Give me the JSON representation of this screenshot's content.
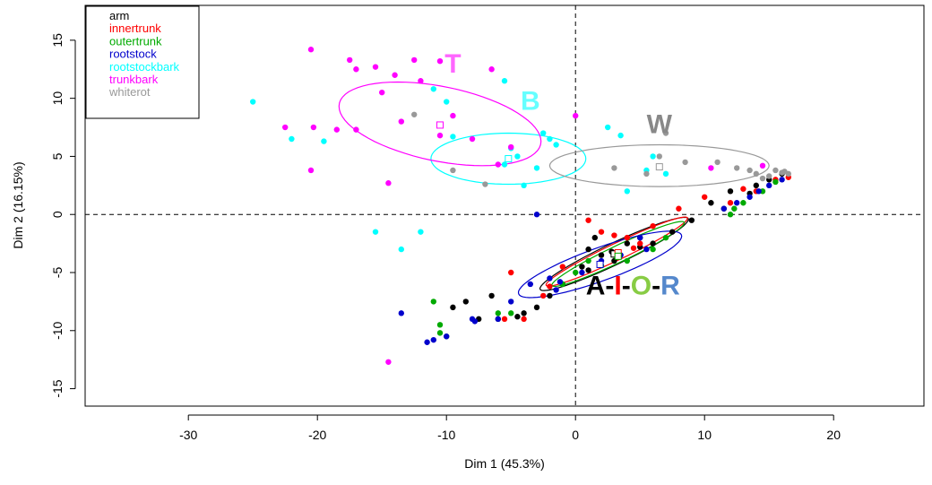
{
  "chart_data": {
    "type": "scatter",
    "xlabel": "Dim 1 (45.3%)",
    "ylabel": "Dim 2 (16.15%)",
    "xlim": [
      -38,
      27
    ],
    "ylim": [
      -16.5,
      18
    ],
    "xticks": [
      "-30",
      "-20",
      "-10",
      "0",
      "10",
      "20"
    ],
    "xtick_values": [
      -30,
      -20,
      -10,
      0,
      10,
      20
    ],
    "yticks": [
      "-15",
      "-10",
      "-5",
      "0",
      "5",
      "10",
      "15"
    ],
    "ytick_values": [
      -15,
      -10,
      -5,
      0,
      5,
      10,
      15
    ],
    "reference_lines": {
      "x": 0,
      "y": 0,
      "style": "dashed"
    },
    "legend_position": "top-left",
    "series": [
      {
        "name": "arm",
        "color": "#000000",
        "points": [
          [
            -8.5,
            -7.5
          ],
          [
            -7.5,
            -9
          ],
          [
            -6.5,
            -7
          ],
          [
            -6,
            -9
          ],
          [
            -4,
            -8.5
          ],
          [
            -3,
            -8
          ],
          [
            -2,
            -7
          ],
          [
            -1,
            -6
          ],
          [
            0.5,
            -4.5
          ],
          [
            1,
            -3
          ],
          [
            1.5,
            -2
          ],
          [
            2,
            -3.5
          ],
          [
            3,
            -4
          ],
          [
            4,
            -2.5
          ],
          [
            5,
            -2
          ],
          [
            6,
            -2.5
          ],
          [
            7.5,
            -1.5
          ],
          [
            9,
            -0.5
          ],
          [
            10.5,
            1
          ],
          [
            12,
            2
          ],
          [
            14,
            2.5
          ],
          [
            15,
            3
          ],
          [
            16,
            3.5
          ],
          [
            -9.5,
            -8
          ],
          [
            -4.5,
            -8.8
          ],
          [
            1,
            -4.8
          ],
          [
            2.8,
            -3.2
          ],
          [
            5,
            -2.8
          ],
          [
            11.5,
            0.5
          ],
          [
            13.5,
            1.8
          ]
        ],
        "ellipse": {
          "cx": 3.0,
          "cy": -3.4,
          "rx": 6.5,
          "ry": 0.9,
          "angle": 28
        }
      },
      {
        "name": "innertrunk",
        "color": "#ff0000",
        "points": [
          [
            -5,
            -5
          ],
          [
            -5.5,
            -9
          ],
          [
            -4,
            -9
          ],
          [
            -2.5,
            -7
          ],
          [
            -1,
            -4.5
          ],
          [
            1,
            -0.5
          ],
          [
            2,
            -1.5
          ],
          [
            3,
            -1.8
          ],
          [
            4,
            -2
          ],
          [
            5,
            -2.5
          ],
          [
            6,
            -1
          ],
          [
            8,
            0.5
          ],
          [
            10,
            1.5
          ],
          [
            12,
            1
          ],
          [
            14,
            2
          ],
          [
            15.5,
            3
          ],
          [
            16.5,
            3.2
          ],
          [
            -2,
            -6.2
          ],
          [
            4.5,
            -2.9
          ],
          [
            13,
            2.2
          ]
        ],
        "ellipse": {
          "cx": 3.2,
          "cy": -3.2,
          "rx": 6.2,
          "ry": 0.7,
          "angle": 28
        }
      },
      {
        "name": "outertrunk",
        "color": "#00aa00",
        "points": [
          [
            -11,
            -7.5
          ],
          [
            -10.5,
            -9.5
          ],
          [
            -10,
            -10.5
          ],
          [
            -6,
            -8.5
          ],
          [
            -5,
            -8.5
          ],
          [
            -1,
            -6
          ],
          [
            0,
            -5
          ],
          [
            1,
            -4
          ],
          [
            3,
            -3.5
          ],
          [
            4,
            -4
          ],
          [
            6,
            -3
          ],
          [
            7,
            -2
          ],
          [
            12,
            0
          ],
          [
            13,
            1
          ],
          [
            14.5,
            2
          ],
          [
            15.5,
            2.8
          ],
          [
            -10.5,
            -10.2
          ],
          [
            2,
            -4.4
          ],
          [
            12.3,
            0.5
          ]
        ],
        "ellipse": {
          "cx": 3.3,
          "cy": -3.4,
          "rx": 5.8,
          "ry": 0.7,
          "angle": 28
        }
      },
      {
        "name": "rootstock",
        "color": "#0000cc",
        "points": [
          [
            -13.5,
            -8.5
          ],
          [
            -11.5,
            -11
          ],
          [
            -10,
            -10.5
          ],
          [
            -8,
            -9
          ],
          [
            -6,
            -9
          ],
          [
            -5,
            -7.5
          ],
          [
            -3.5,
            -6
          ],
          [
            -3,
            0
          ],
          [
            -2,
            -5.5
          ],
          [
            -1.5,
            -6.5
          ],
          [
            0.5,
            -5
          ],
          [
            2,
            -4
          ],
          [
            3.5,
            -3.5
          ],
          [
            5,
            -2
          ],
          [
            5.5,
            -3
          ],
          [
            11.5,
            0.5
          ],
          [
            12.5,
            1
          ],
          [
            13.5,
            1.5
          ],
          [
            15,
            2.5
          ],
          [
            16,
            3
          ],
          [
            -11,
            -10.8
          ],
          [
            -7.8,
            -9.2
          ],
          [
            -1.2,
            -5.8
          ],
          [
            14.2,
            2
          ]
        ],
        "ellipse": {
          "cx": 1.9,
          "cy": -4.3,
          "rx": 6.8,
          "ry": 1.4,
          "angle": 22
        }
      },
      {
        "name": "rootstockbark",
        "color": "#00ffff",
        "points": [
          [
            -25,
            9.7
          ],
          [
            -22,
            6.5
          ],
          [
            -19.5,
            6.3
          ],
          [
            -15.5,
            -1.5
          ],
          [
            -13.5,
            -3
          ],
          [
            -12,
            -1.5
          ],
          [
            -11,
            10.8
          ],
          [
            -10,
            9.7
          ],
          [
            -9.5,
            6.7
          ],
          [
            -5.5,
            11.5
          ],
          [
            -5,
            5.7
          ],
          [
            -4,
            2.5
          ],
          [
            -3,
            4
          ],
          [
            -2,
            6.5
          ],
          [
            -1.5,
            6
          ],
          [
            -2.5,
            7
          ],
          [
            2.5,
            7.5
          ],
          [
            3.5,
            6.8
          ],
          [
            4,
            2
          ],
          [
            5.5,
            3.8
          ],
          [
            6,
            5
          ],
          [
            7,
            3.5
          ],
          [
            -5.5,
            4.3
          ],
          [
            -4.5,
            5
          ]
        ],
        "ellipse": {
          "cx": -5.2,
          "cy": 4.8,
          "rx": 6.0,
          "ry": 2.2,
          "angle": 0
        }
      },
      {
        "name": "trunkbark",
        "color": "#ff00ff",
        "points": [
          [
            -22.5,
            7.5
          ],
          [
            -20.5,
            14.2
          ],
          [
            -20.3,
            7.5
          ],
          [
            -20.5,
            3.8
          ],
          [
            -18.5,
            7.3
          ],
          [
            -17.5,
            13.3
          ],
          [
            -17,
            7.3
          ],
          [
            -17,
            12.5
          ],
          [
            -15.5,
            12.7
          ],
          [
            -15,
            10.5
          ],
          [
            -14.5,
            2.7
          ],
          [
            -14,
            12
          ],
          [
            -12.5,
            13.3
          ],
          [
            -12,
            11.5
          ],
          [
            -10.5,
            13.2
          ],
          [
            -10.5,
            6.8
          ],
          [
            -9.5,
            8.5
          ],
          [
            -8,
            6.5
          ],
          [
            -6.5,
            12.5
          ],
          [
            -6,
            4.3
          ],
          [
            -5,
            5.8
          ],
          [
            0,
            8.5
          ],
          [
            -14.5,
            -12.7
          ],
          [
            10.5,
            4
          ],
          [
            14.5,
            4.2
          ],
          [
            -13.5,
            8
          ]
        ],
        "ellipse": {
          "cx": -10.5,
          "cy": 7.8,
          "rx": 8.0,
          "ry": 3.2,
          "angle": -13
        }
      },
      {
        "name": "whiterot",
        "color": "#999999",
        "points": [
          [
            -12.5,
            8.6
          ],
          [
            -9.5,
            3.8
          ],
          [
            -7,
            2.6
          ],
          [
            3,
            4
          ],
          [
            5.5,
            3.5
          ],
          [
            6.5,
            5
          ],
          [
            8.5,
            4.5
          ],
          [
            11,
            4.5
          ],
          [
            12.5,
            4
          ],
          [
            13.5,
            3.8
          ],
          [
            14,
            3.5
          ],
          [
            15,
            3.3
          ],
          [
            15.5,
            3.8
          ],
          [
            16,
            3.6
          ],
          [
            16.5,
            3.5
          ],
          [
            7,
            7
          ],
          [
            14.5,
            3.1
          ],
          [
            16.2,
            3.7
          ]
        ],
        "ellipse": {
          "cx": 6.5,
          "cy": 4.2,
          "rx": 8.5,
          "ry": 1.8,
          "angle": 0
        }
      }
    ],
    "centroids": [
      {
        "series": "trunkbark",
        "x": -10.5,
        "y": 7.7
      },
      {
        "series": "rootstockbark",
        "x": -5.2,
        "y": 4.8
      },
      {
        "series": "whiterot",
        "x": 6.5,
        "y": 4.1
      },
      {
        "series": "arm",
        "x": 3.0,
        "y": -3.4
      },
      {
        "series": "innertrunk",
        "x": 3.3,
        "y": -3.3
      },
      {
        "series": "outertrunk",
        "x": 3.3,
        "y": -3.6
      },
      {
        "series": "rootstock",
        "x": 1.9,
        "y": -4.3
      }
    ],
    "annotations": [
      {
        "text": "T",
        "color": "#ff66ff",
        "x": -9.5,
        "y": 12.2
      },
      {
        "text": "B",
        "color": "#66ffff",
        "x": -3.5,
        "y": 9.0
      },
      {
        "text": "W",
        "color": "#888888",
        "x": 6.5,
        "y": 7.0
      }
    ],
    "aior_label": [
      {
        "text": "A",
        "color": "#000000"
      },
      {
        "text": "-",
        "color": "#000000"
      },
      {
        "text": "I",
        "color": "#ff0000"
      },
      {
        "text": "-",
        "color": "#000000"
      },
      {
        "text": "O",
        "color": "#88cc44"
      },
      {
        "text": "-",
        "color": "#000000"
      },
      {
        "text": "R",
        "color": "#5588cc"
      }
    ],
    "aior_position": {
      "x": 0.8,
      "y": -6.9
    }
  }
}
